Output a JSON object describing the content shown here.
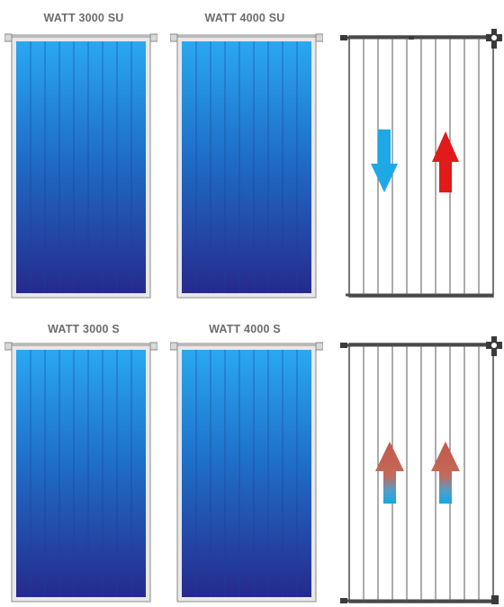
{
  "labels": {
    "top_left": "WATT 3000 SU",
    "top_middle": "WATT 4000 SU",
    "bottom_left": "WATT 3000 S",
    "bottom_middle": "WATT 4000 S"
  },
  "colors": {
    "panel_top": "#2aa8f0",
    "panel_bottom": "#262a8c",
    "frame": "#e8e8e8",
    "frame_edge": "#8a8a8a",
    "arrow_down": "#1ea8e6",
    "arrow_up": "#e11b1b",
    "arrow_gradient_top": "#c2574a",
    "arrow_gradient_bottom": "#13a9e0"
  },
  "icons": {
    "top_diagram": [
      "down-arrow-icon",
      "up-arrow-icon",
      "valve-icon"
    ],
    "bottom_diagram": [
      "up-arrow-gradient-icon",
      "up-arrow-gradient-icon",
      "valve-icon"
    ]
  }
}
